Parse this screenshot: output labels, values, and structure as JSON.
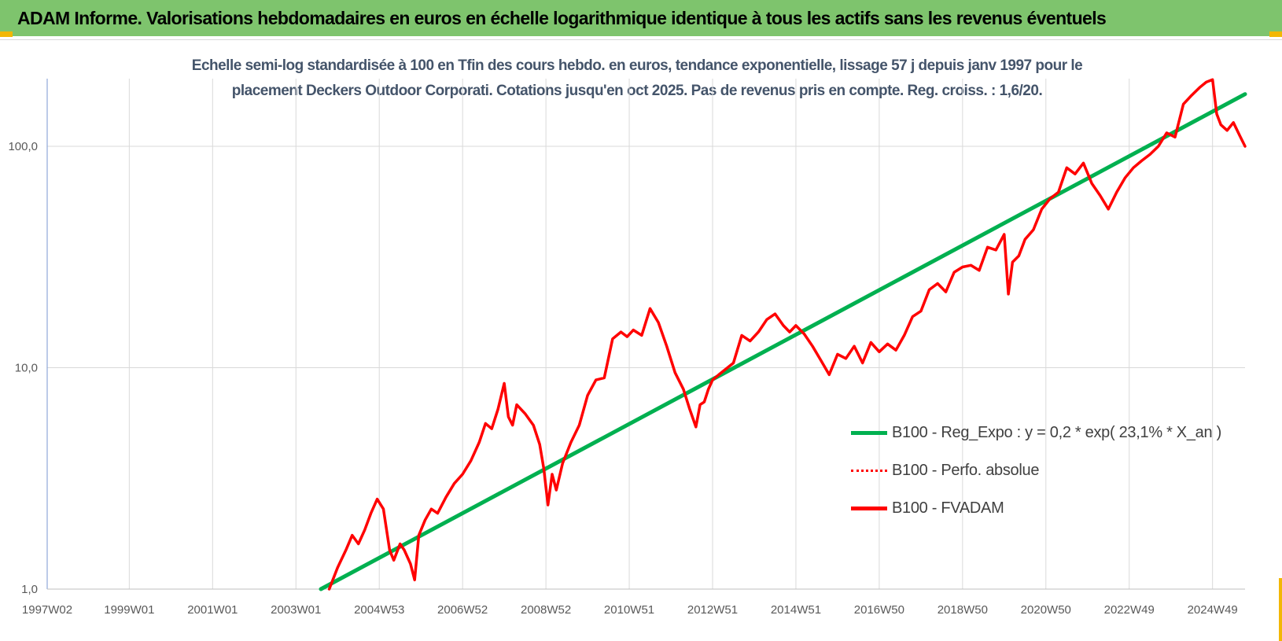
{
  "banner": {
    "title": "ADAM Informe. Valorisations hebdomadaires en euros en échelle logarithmique identique à tous les actifs sans les revenus éventuels"
  },
  "colors": {
    "banner_bg": "#7ec46d",
    "corner_marker": "#f2b705",
    "fvadam": "#ff0000",
    "perfo": "#ff0000",
    "regression": "#00b050",
    "title_text": "#44546a"
  },
  "chart_data": {
    "type": "line",
    "title_lines": [
      "Echelle semi-log standardisée à 100 en Tfin des cours hebdo. en euros, tendance exponentielle, lissage 57 j depuis janv 1997 pour le",
      "placement Deckers Outdoor Corporati. Cotations jusqu'en oct 2025. Pas de revenus pris en compte. Reg. croiss. : 1,6/20."
    ],
    "y_scale": "log",
    "ylim": [
      1,
      200
    ],
    "xlim": [
      1997.03,
      2025.78
    ],
    "ytick_labels": [
      "1,0",
      "10,0",
      "100,0"
    ],
    "ytick_values": [
      1,
      10,
      100
    ],
    "xtick_labels": [
      "1997W02",
      "1999W01",
      "2001W01",
      "2003W01",
      "2004W53",
      "2006W52",
      "2008W52",
      "2010W51",
      "2012W51",
      "2014W51",
      "2016W50",
      "2018W50",
      "2020W50",
      "2022W49",
      "2024W49"
    ],
    "xtick_values": [
      1997.03,
      1999.0,
      2001.0,
      2003.0,
      2005.0,
      2007.0,
      2009.0,
      2011.0,
      2013.0,
      2015.0,
      2017.0,
      2019.0,
      2021.0,
      2023.0,
      2025.0
    ],
    "grid": "vertical and horizontal",
    "legend_position": "bottom-right",
    "series": [
      {
        "name": "B100 - Reg_Expo : y = 0,2 * exp( 23,1% *  X_an )",
        "style": "solid",
        "x": [
          2003.6,
          2025.78
        ],
        "y": [
          1.0,
          172
        ]
      },
      {
        "name": "B100 - Perfo. absolue",
        "style": "dotted",
        "x": [],
        "y": []
      },
      {
        "name": "B100 - FVADAM",
        "style": "solid",
        "x": [
          2003.8,
          2004.0,
          2004.2,
          2004.35,
          2004.5,
          2004.65,
          2004.8,
          2004.95,
          2005.1,
          2005.25,
          2005.35,
          2005.5,
          2005.6,
          2005.75,
          2005.85,
          2005.95,
          2006.1,
          2006.25,
          2006.4,
          2006.6,
          2006.8,
          2007.0,
          2007.2,
          2007.4,
          2007.55,
          2007.7,
          2007.85,
          2008.0,
          2008.1,
          2008.2,
          2008.3,
          2008.5,
          2008.7,
          2008.85,
          2008.95,
          2009.05,
          2009.15,
          2009.25,
          2009.4,
          2009.6,
          2009.8,
          2010.0,
          2010.2,
          2010.4,
          2010.6,
          2010.8,
          2010.95,
          2011.1,
          2011.3,
          2011.5,
          2011.7,
          2011.9,
          2012.1,
          2012.3,
          2012.45,
          2012.6,
          2012.7,
          2012.8,
          2012.9,
          2013.0,
          2013.15,
          2013.3,
          2013.5,
          2013.7,
          2013.9,
          2014.1,
          2014.3,
          2014.5,
          2014.7,
          2014.85,
          2015.0,
          2015.2,
          2015.4,
          2015.6,
          2015.8,
          2016.0,
          2016.2,
          2016.4,
          2016.6,
          2016.8,
          2017.0,
          2017.2,
          2017.4,
          2017.6,
          2017.8,
          2018.0,
          2018.2,
          2018.4,
          2018.6,
          2018.8,
          2019.0,
          2019.2,
          2019.4,
          2019.6,
          2019.8,
          2020.0,
          2020.1,
          2020.2,
          2020.35,
          2020.5,
          2020.7,
          2020.9,
          2021.1,
          2021.3,
          2021.5,
          2021.7,
          2021.9,
          2022.1,
          2022.3,
          2022.5,
          2022.7,
          2022.9,
          2023.1,
          2023.3,
          2023.5,
          2023.7,
          2023.9,
          2024.1,
          2024.3,
          2024.5,
          2024.7,
          2024.85,
          2025.0,
          2025.1,
          2025.2,
          2025.35,
          2025.5,
          2025.65,
          2025.78
        ],
        "y": [
          1.0,
          1.25,
          1.5,
          1.75,
          1.6,
          1.85,
          2.2,
          2.55,
          2.3,
          1.5,
          1.35,
          1.6,
          1.5,
          1.3,
          1.1,
          1.75,
          2.05,
          2.3,
          2.2,
          2.6,
          3.0,
          3.3,
          3.8,
          4.6,
          5.6,
          5.3,
          6.5,
          8.5,
          6.0,
          5.5,
          6.8,
          6.2,
          5.5,
          4.5,
          3.5,
          2.4,
          3.3,
          2.8,
          3.7,
          4.6,
          5.5,
          7.5,
          8.8,
          9.0,
          13.5,
          14.5,
          13.8,
          14.8,
          14.0,
          18.5,
          16.0,
          12.5,
          9.5,
          8.0,
          6.5,
          5.4,
          6.8,
          7.0,
          8.0,
          8.8,
          9.3,
          9.8,
          10.5,
          14.0,
          13.2,
          14.5,
          16.5,
          17.5,
          15.5,
          14.5,
          15.5,
          14.2,
          12.5,
          10.8,
          9.3,
          11.5,
          11.0,
          12.5,
          10.5,
          13.0,
          11.8,
          12.8,
          12.0,
          14.0,
          17.0,
          18.0,
          22.5,
          24.0,
          22.0,
          27.0,
          28.5,
          29.0,
          27.5,
          35.0,
          34.0,
          40.0,
          21.5,
          30.0,
          32.0,
          38.0,
          42.0,
          52.0,
          58.0,
          62.0,
          80.0,
          75.0,
          84.0,
          68.0,
          60.0,
          52.0,
          62.0,
          72.0,
          80.0,
          86.0,
          92.0,
          100.0,
          115.0,
          110.0,
          155.0,
          170.0,
          185.0,
          195.0,
          200.0,
          140.0,
          125.0,
          118.0,
          128.0,
          112.0,
          100.0
        ]
      }
    ]
  }
}
